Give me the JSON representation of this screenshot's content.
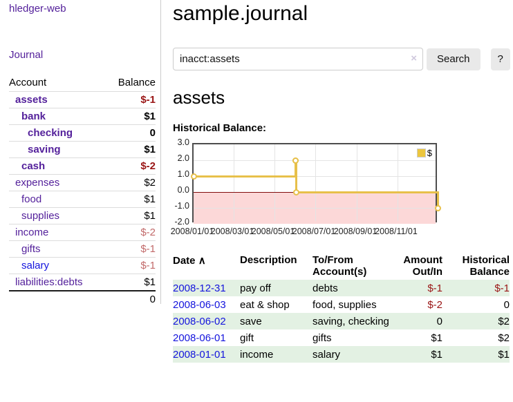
{
  "colors": {
    "link_purple": "#54219b",
    "link_blue": "#1414dd",
    "negative_strong": "#991414",
    "negative_soft": "#c26a6a",
    "row_green": "#e3f1e3",
    "chart_line_gold": "#e7c04a",
    "chart_negative_fill": "#fcd8d8",
    "chart_zero_line": "#7f0b0b"
  },
  "sidebar": {
    "app_title": "hledger-web",
    "nav": [
      {
        "label": "Journal"
      }
    ],
    "accounts_table": {
      "headers": [
        "Account",
        "Balance"
      ],
      "rows": [
        {
          "name": "assets",
          "balance": "$-1",
          "indent": 1,
          "bold": true,
          "negative": true
        },
        {
          "name": "bank",
          "balance": "$1",
          "indent": 2,
          "bold": true,
          "negative": false
        },
        {
          "name": "checking",
          "balance": "0",
          "indent": 3,
          "bold": true,
          "negative": false
        },
        {
          "name": "saving",
          "balance": "$1",
          "indent": 3,
          "bold": true,
          "negative": false
        },
        {
          "name": "cash",
          "balance": "$-2",
          "indent": 2,
          "bold": true,
          "negative": true
        },
        {
          "name": "expenses",
          "balance": "$2",
          "indent": 1,
          "bold": false,
          "negative": false
        },
        {
          "name": "food",
          "balance": "$1",
          "indent": 2,
          "bold": false,
          "negative": false
        },
        {
          "name": "supplies",
          "balance": "$1",
          "indent": 2,
          "bold": false,
          "negative": false
        },
        {
          "name": "income",
          "balance": "$-2",
          "indent": 1,
          "bold": false,
          "negative": true
        },
        {
          "name": "gifts",
          "balance": "$-1",
          "indent": 2,
          "bold": false,
          "negative": true
        },
        {
          "name": "salary",
          "balance": "$-1",
          "indent": 2,
          "bold": false,
          "negative": true,
          "unvisited": true
        },
        {
          "name": "liabilities:debts",
          "balance": "$1",
          "indent": 1,
          "bold": false,
          "negative": false
        }
      ],
      "total": "0"
    }
  },
  "header": {
    "title": "sample.journal"
  },
  "search": {
    "value": "inacct:assets",
    "clear_icon": "×",
    "button_label": "Search",
    "help_label": "?"
  },
  "account_page": {
    "title": "assets",
    "chart_heading": "Historical Balance:"
  },
  "chart_data": {
    "type": "line",
    "style": "step",
    "title": "Historical Balance",
    "series": [
      {
        "name": "$",
        "points": [
          [
            "2008-01-01",
            1.0
          ],
          [
            "2008-06-01",
            2.0
          ],
          [
            "2008-06-02",
            2.0
          ],
          [
            "2008-06-03",
            0.0
          ],
          [
            "2008-12-31",
            -1.0
          ]
        ]
      }
    ],
    "x_range": [
      "2008-01-01",
      "2009-01-01"
    ],
    "x_ticks": [
      "2008/01/01",
      "2008/03/01",
      "2008/05/01",
      "2008/07/01",
      "2008/09/01",
      "2008/11/01"
    ],
    "y_ticks": [
      3.0,
      2.0,
      1.0,
      0.0,
      -1.0,
      -2.0
    ],
    "y_tick_labels": [
      "3.0",
      "2.0",
      "1.0",
      "0.0",
      "-1.0",
      "-2.0"
    ],
    "ylim": [
      -2,
      3
    ],
    "legend": "$",
    "legend_position": "top-right",
    "grid": true,
    "negative_region_shaded": true
  },
  "register_table": {
    "sort_icon": "∧",
    "headers": [
      "Date",
      "Description",
      "To/From Account(s)",
      "Amount Out/In",
      "Historical Balance"
    ],
    "rows": [
      {
        "date": "2008-12-31",
        "description": "pay off",
        "accounts": "debts",
        "amount": "$-1",
        "balance": "$-1"
      },
      {
        "date": "2008-06-03",
        "description": "eat & shop",
        "accounts": "food, supplies",
        "amount": "$-2",
        "balance": "0"
      },
      {
        "date": "2008-06-02",
        "description": "save",
        "accounts": "saving, checking",
        "amount": "0",
        "balance": "$2"
      },
      {
        "date": "2008-06-01",
        "description": "gift",
        "accounts": "gifts",
        "amount": "$1",
        "balance": "$2"
      },
      {
        "date": "2008-01-01",
        "description": "income",
        "accounts": "salary",
        "amount": "$1",
        "balance": "$1"
      }
    ]
  }
}
